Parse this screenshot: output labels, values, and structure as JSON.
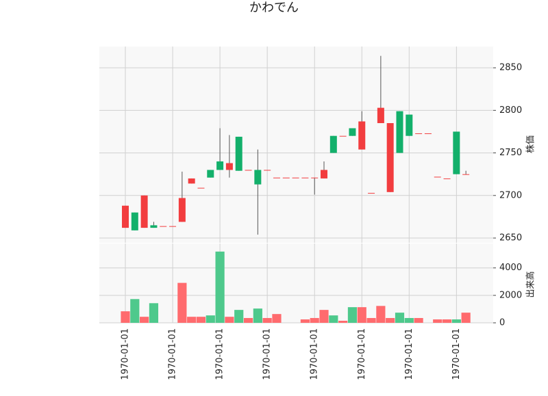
{
  "chart_data": {
    "type": "candlestick",
    "title": "かわでん",
    "categories": [
      "1970-01-01",
      null,
      null,
      null,
      null,
      "1970-01-01",
      null,
      null,
      null,
      null,
      "1970-01-01",
      null,
      null,
      null,
      null,
      "1970-01-01",
      null,
      null,
      null,
      null,
      "1970-01-01",
      null,
      null,
      null,
      null,
      "1970-01-01",
      null,
      null,
      null,
      null,
      "1970-01-01",
      null,
      null,
      null,
      null,
      "1970-01-01",
      null
    ],
    "open": [
      2662,
      2680,
      2662,
      2665,
      2664,
      2664,
      2669,
      2714,
      2709,
      2730,
      2740,
      2730,
      2769,
      2730,
      2730,
      2730,
      2721,
      2721,
      2721,
      2721,
      2721,
      2720,
      2770,
      2770,
      2779,
      2754,
      2703,
      2785,
      2704,
      2799,
      2795,
      2773,
      2773,
      2722,
      2720,
      2775,
      2725
    ],
    "high": [
      2688,
      2680,
      2700,
      2669,
      2664,
      2664,
      2728,
      2720,
      2709,
      2730,
      2779,
      2771,
      2769,
      2730,
      2754,
      2730,
      2721,
      2721,
      2721,
      2721,
      2721,
      2740,
      2770,
      2770,
      2779,
      2799,
      2703,
      2864,
      2785,
      2799,
      2795,
      2773,
      2773,
      2722,
      2720,
      2775,
      2729
    ],
    "low": [
      2662,
      2659,
      2662,
      2662,
      2664,
      2664,
      2669,
      2714,
      2709,
      2721,
      2730,
      2721,
      2729,
      2730,
      2654,
      2730,
      2721,
      2721,
      2721,
      2721,
      2701,
      2720,
      2750,
      2770,
      2770,
      2754,
      2703,
      2785,
      2704,
      2750,
      2770,
      2773,
      2773,
      2722,
      2720,
      2725,
      2725
    ],
    "close": [
      2688,
      2659,
      2700,
      2662,
      2664,
      2664,
      2697,
      2720,
      2709,
      2721,
      2730,
      2738,
      2729,
      2730,
      2713,
      2730,
      2721,
      2721,
      2721,
      2721,
      2721,
      2730,
      2750,
      2770,
      2770,
      2787,
      2703,
      2803,
      2785,
      2750,
      2770,
      2773,
      2773,
      2722,
      2720,
      2725,
      2725
    ],
    "volume": [
      840,
      1730,
      440,
      1430,
      0,
      0,
      2910,
      440,
      440,
      540,
      5190,
      440,
      940,
      350,
      1040,
      350,
      640,
      0,
      0,
      250,
      350,
      940,
      540,
      150,
      1140,
      1140,
      350,
      1230,
      350,
      740,
      350,
      350,
      0,
      250,
      250,
      250,
      740
    ],
    "up_color": "#f23d3f",
    "down_color": "#13b06b",
    "volume_up_color": "#ff6b6e",
    "volume_down_color": "#4ec98c",
    "ylim": [
      2644.4,
      2875
    ],
    "yticks": [
      2650,
      2700,
      2750,
      2800,
      2850
    ],
    "ylabel": "株価",
    "volume_ylim": [
      0,
      5780
    ],
    "volume_yticks": [
      0,
      2000,
      4000
    ],
    "volume_ylabel": "出来高",
    "grid": true
  }
}
